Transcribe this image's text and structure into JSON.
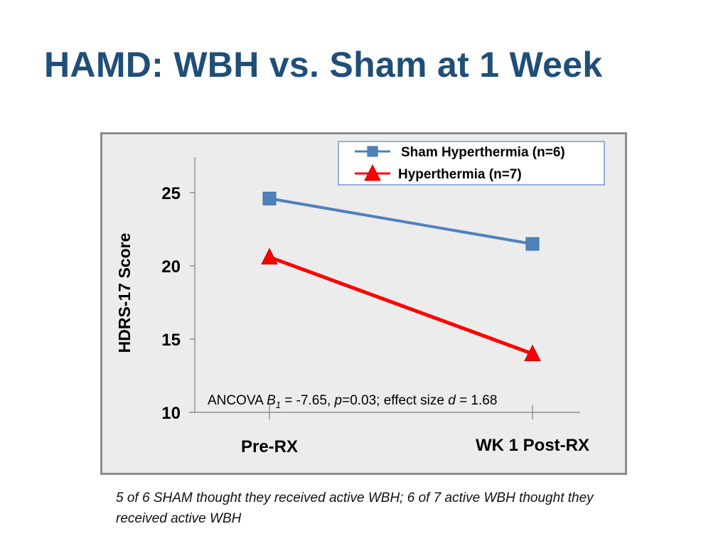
{
  "slide": {
    "title": "HAMD: WBH vs. Sham at 1 Week",
    "footnote": "5 of 6 SHAM thought they received active WBH; 6 of 7 active WBH thought they received active WBH"
  },
  "chart_data": {
    "type": "line",
    "categories": [
      "Pre-RX",
      "WK 1 Post-RX"
    ],
    "series": [
      {
        "name": "Sham Hyperthermia (n=6)",
        "values": [
          24.6,
          21.5
        ],
        "color": "#4F81BD",
        "marker": "square"
      },
      {
        "name": "Hyperthermia (n=7)",
        "values": [
          20.6,
          14.0
        ],
        "color": "#FF0000",
        "marker": "triangle"
      }
    ],
    "ylabel": "HDRS-17 Score",
    "xlabel": "",
    "ylim": [
      10,
      27
    ],
    "yticks": [
      "10",
      "15",
      "20",
      "25"
    ],
    "grid": false,
    "legend": "top-right",
    "annotation": {
      "prefix": "ANCOVA ",
      "b": "B",
      "b_sub": "1",
      "mid1": " = -7.65, ",
      "p": "p",
      "mid2": "=0.03; effect size ",
      "d": "d",
      "suffix": " = 1.68"
    }
  }
}
